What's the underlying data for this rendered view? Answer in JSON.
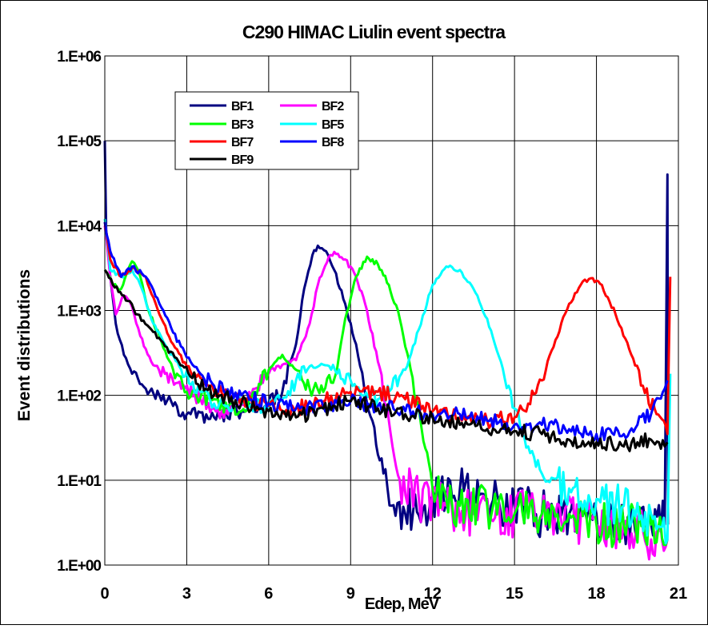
{
  "chart_data": {
    "type": "line",
    "title": "C290 HIMAC Liulin event spectra",
    "xlabel": "Edep, MeV",
    "ylabel": "Event distributions",
    "x_scale": "linear",
    "y_scale": "log",
    "xlim": [
      0,
      21
    ],
    "ylim": [
      1,
      1000000
    ],
    "x_ticks": [
      0,
      3,
      6,
      9,
      12,
      15,
      18,
      21
    ],
    "x_tick_labels": [
      "0",
      "3",
      "6",
      "9",
      "12",
      "15",
      "18",
      "21"
    ],
    "y_ticks": [
      1,
      10,
      100,
      1000,
      10000,
      100000,
      1000000
    ],
    "y_tick_labels": [
      "1.E+00",
      "1.E+01",
      "1.E+02",
      "1.E+03",
      "1.E+04",
      "1.E+05",
      "1.E+06"
    ],
    "grid": {
      "x": true,
      "y": true
    },
    "legend_position": "top-left",
    "series": [
      {
        "name": "BF1",
        "color": "#000080",
        "points": [
          [
            0.0,
            100000
          ],
          [
            0.05,
            9000
          ],
          [
            0.2,
            2500
          ],
          [
            0.4,
            700
          ],
          [
            0.7,
            300
          ],
          [
            1.0,
            180
          ],
          [
            1.5,
            120
          ],
          [
            2.0,
            100
          ],
          [
            2.5,
            75
          ],
          [
            3.0,
            60
          ],
          [
            4.0,
            55
          ],
          [
            5.0,
            65
          ],
          [
            6.0,
            80
          ],
          [
            6.5,
            110
          ],
          [
            7.0,
            400
          ],
          [
            7.3,
            1800
          ],
          [
            7.6,
            4500
          ],
          [
            7.8,
            5800
          ],
          [
            8.1,
            5000
          ],
          [
            8.4,
            3000
          ],
          [
            8.8,
            1200
          ],
          [
            9.2,
            400
          ],
          [
            9.5,
            120
          ],
          [
            9.8,
            50
          ],
          [
            10.2,
            12
          ],
          [
            10.5,
            5
          ],
          [
            11.0,
            4
          ],
          [
            12.0,
            6
          ],
          [
            13.0,
            8
          ],
          [
            14.0,
            6
          ],
          [
            15.0,
            5
          ],
          [
            16.0,
            4
          ],
          [
            17.0,
            4
          ],
          [
            18.0,
            4
          ],
          [
            19.0,
            3
          ],
          [
            20.0,
            3
          ],
          [
            20.5,
            3
          ],
          [
            20.6,
            40000
          ],
          [
            20.62,
            3
          ]
        ]
      },
      {
        "name": "BF2",
        "color": "#FF00FF",
        "points": [
          [
            0.0,
            10000
          ],
          [
            0.2,
            2500
          ],
          [
            0.4,
            900
          ],
          [
            0.7,
            1500
          ],
          [
            1.0,
            1100
          ],
          [
            1.3,
            500
          ],
          [
            1.7,
            250
          ],
          [
            2.2,
            180
          ],
          [
            2.8,
            120
          ],
          [
            3.5,
            90
          ],
          [
            4.0,
            70
          ],
          [
            4.5,
            60
          ],
          [
            5.0,
            80
          ],
          [
            5.5,
            120
          ],
          [
            6.0,
            180
          ],
          [
            6.5,
            230
          ],
          [
            7.0,
            260
          ],
          [
            7.5,
            700
          ],
          [
            7.8,
            2000
          ],
          [
            8.2,
            4300
          ],
          [
            8.4,
            4900
          ],
          [
            8.8,
            4000
          ],
          [
            9.2,
            2500
          ],
          [
            9.6,
            1000
          ],
          [
            10.0,
            250
          ],
          [
            10.4,
            50
          ],
          [
            10.8,
            10
          ],
          [
            11.5,
            6
          ],
          [
            12.5,
            5
          ],
          [
            13.5,
            4
          ],
          [
            15.0,
            4
          ],
          [
            16.5,
            4
          ],
          [
            18.0,
            3
          ],
          [
            19.0,
            3
          ],
          [
            20.0,
            2
          ],
          [
            20.6,
            2
          ]
        ]
      },
      {
        "name": "BF3",
        "color": "#00FF00",
        "points": [
          [
            0.0,
            3000
          ],
          [
            0.3,
            2000
          ],
          [
            0.6,
            1800
          ],
          [
            1.0,
            3800
          ],
          [
            1.3,
            2500
          ],
          [
            1.6,
            1000
          ],
          [
            2.0,
            500
          ],
          [
            2.5,
            200
          ],
          [
            3.0,
            110
          ],
          [
            3.5,
            95
          ],
          [
            4.0,
            90
          ],
          [
            4.5,
            70
          ],
          [
            5.0,
            65
          ],
          [
            5.5,
            110
          ],
          [
            6.0,
            200
          ],
          [
            6.5,
            300
          ],
          [
            7.0,
            200
          ],
          [
            7.5,
            120
          ],
          [
            8.0,
            110
          ],
          [
            8.5,
            200
          ],
          [
            8.8,
            800
          ],
          [
            9.2,
            2500
          ],
          [
            9.6,
            4300
          ],
          [
            10.0,
            3500
          ],
          [
            10.4,
            2000
          ],
          [
            10.8,
            800
          ],
          [
            11.2,
            200
          ],
          [
            11.6,
            40
          ],
          [
            12.0,
            8
          ],
          [
            13.0,
            5
          ],
          [
            14.0,
            5
          ],
          [
            15.0,
            4
          ],
          [
            16.0,
            4
          ],
          [
            17.0,
            4
          ],
          [
            18.0,
            3
          ],
          [
            19.0,
            3
          ],
          [
            20.0,
            3
          ],
          [
            20.6,
            2
          ]
        ]
      },
      {
        "name": "BF5",
        "color": "#00FFFF",
        "points": [
          [
            0.0,
            12000
          ],
          [
            0.2,
            3000
          ],
          [
            0.6,
            2500
          ],
          [
            1.0,
            3000
          ],
          [
            1.3,
            2000
          ],
          [
            1.7,
            800
          ],
          [
            2.2,
            400
          ],
          [
            2.8,
            200
          ],
          [
            3.5,
            110
          ],
          [
            4.0,
            80
          ],
          [
            5.0,
            80
          ],
          [
            6.0,
            70
          ],
          [
            6.5,
            90
          ],
          [
            7.0,
            150
          ],
          [
            7.5,
            220
          ],
          [
            8.0,
            230
          ],
          [
            8.5,
            180
          ],
          [
            9.0,
            150
          ],
          [
            9.5,
            100
          ],
          [
            10.0,
            90
          ],
          [
            10.5,
            120
          ],
          [
            11.0,
            200
          ],
          [
            11.5,
            600
          ],
          [
            12.0,
            2000
          ],
          [
            12.5,
            3300
          ],
          [
            13.0,
            3000
          ],
          [
            13.5,
            1800
          ],
          [
            14.0,
            800
          ],
          [
            14.5,
            250
          ],
          [
            15.0,
            70
          ],
          [
            15.5,
            25
          ],
          [
            16.0,
            12
          ],
          [
            17.0,
            8
          ],
          [
            18.0,
            6
          ],
          [
            19.0,
            5
          ],
          [
            20.0,
            4
          ],
          [
            20.6,
            2
          ],
          [
            20.7,
            180
          ]
        ]
      },
      {
        "name": "BF7",
        "color": "#FF0000",
        "points": [
          [
            0.0,
            11000
          ],
          [
            0.2,
            4000
          ],
          [
            0.6,
            2500
          ],
          [
            1.0,
            3200
          ],
          [
            1.5,
            2500
          ],
          [
            2.0,
            900
          ],
          [
            2.5,
            400
          ],
          [
            3.0,
            220
          ],
          [
            3.5,
            160
          ],
          [
            4.0,
            110
          ],
          [
            5.0,
            90
          ],
          [
            6.0,
            75
          ],
          [
            7.0,
            70
          ],
          [
            8.0,
            85
          ],
          [
            9.0,
            110
          ],
          [
            10.0,
            110
          ],
          [
            11.0,
            90
          ],
          [
            12.0,
            65
          ],
          [
            13.0,
            55
          ],
          [
            14.0,
            50
          ],
          [
            15.0,
            55
          ],
          [
            15.5,
            80
          ],
          [
            16.0,
            150
          ],
          [
            16.5,
            450
          ],
          [
            17.0,
            1200
          ],
          [
            17.5,
            2200
          ],
          [
            17.8,
            2400
          ],
          [
            18.2,
            2000
          ],
          [
            18.7,
            900
          ],
          [
            19.2,
            350
          ],
          [
            19.7,
            130
          ],
          [
            20.2,
            60
          ],
          [
            20.6,
            35
          ],
          [
            20.7,
            2500
          ]
        ]
      },
      {
        "name": "BF8",
        "color": "#0000FF",
        "points": [
          [
            0.0,
            11000
          ],
          [
            0.2,
            5000
          ],
          [
            0.6,
            2500
          ],
          [
            1.0,
            3300
          ],
          [
            1.5,
            2500
          ],
          [
            2.0,
            1200
          ],
          [
            2.5,
            550
          ],
          [
            3.0,
            280
          ],
          [
            3.5,
            180
          ],
          [
            4.0,
            130
          ],
          [
            5.0,
            100
          ],
          [
            6.0,
            80
          ],
          [
            7.0,
            70
          ],
          [
            8.0,
            75
          ],
          [
            9.0,
            85
          ],
          [
            10.0,
            75
          ],
          [
            11.0,
            65
          ],
          [
            12.0,
            60
          ],
          [
            13.0,
            60
          ],
          [
            14.0,
            50
          ],
          [
            15.0,
            45
          ],
          [
            16.0,
            45
          ],
          [
            17.0,
            40
          ],
          [
            18.0,
            35
          ],
          [
            19.0,
            35
          ],
          [
            19.5,
            45
          ],
          [
            20.0,
            60
          ],
          [
            20.5,
            120
          ],
          [
            20.6,
            150
          ]
        ]
      },
      {
        "name": "BF9",
        "color": "#000000",
        "points": [
          [
            0.0,
            3000
          ],
          [
            0.3,
            2000
          ],
          [
            0.7,
            1500
          ],
          [
            1.2,
            900
          ],
          [
            1.7,
            600
          ],
          [
            2.2,
            380
          ],
          [
            2.7,
            250
          ],
          [
            3.2,
            160
          ],
          [
            3.7,
            120
          ],
          [
            4.2,
            100
          ],
          [
            5.0,
            80
          ],
          [
            6.0,
            65
          ],
          [
            7.0,
            55
          ],
          [
            8.0,
            70
          ],
          [
            9.0,
            85
          ],
          [
            10.0,
            70
          ],
          [
            11.0,
            60
          ],
          [
            12.0,
            55
          ],
          [
            13.0,
            45
          ],
          [
            14.0,
            40
          ],
          [
            15.0,
            38
          ],
          [
            16.0,
            35
          ],
          [
            17.0,
            30
          ],
          [
            18.0,
            28
          ],
          [
            19.0,
            25
          ],
          [
            19.5,
            28
          ],
          [
            20.0,
            30
          ],
          [
            20.5,
            25
          ],
          [
            20.6,
            28
          ]
        ]
      }
    ]
  }
}
